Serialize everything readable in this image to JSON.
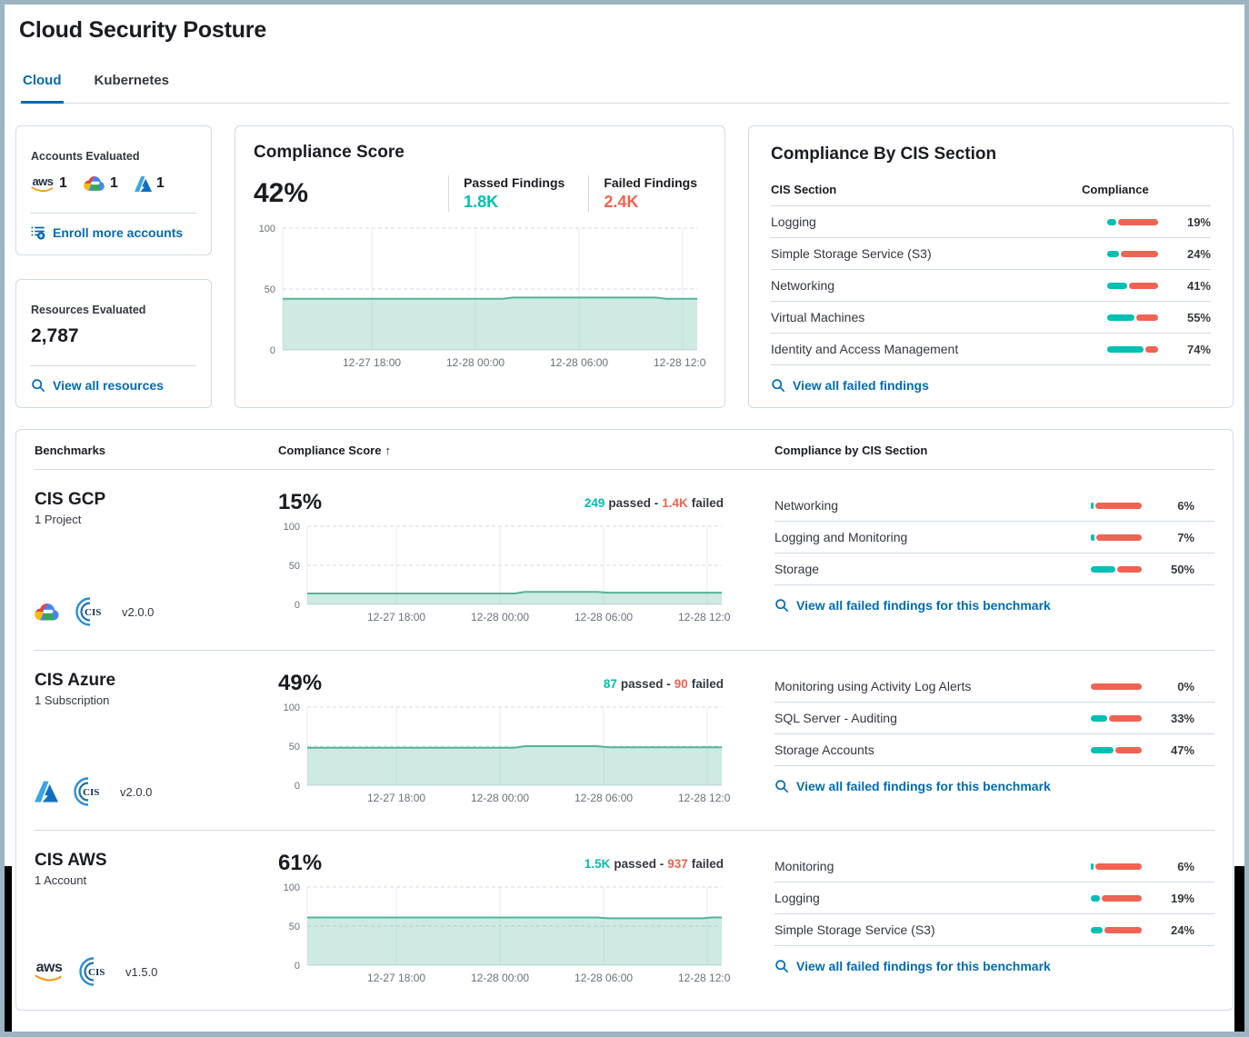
{
  "colors": {
    "teal": "#00BFB3",
    "coral": "#EE6352",
    "link_blue": "#006BB4",
    "chart_line": "#54B399",
    "chart_fill": "rgba(84,179,153,0.28)"
  },
  "header": {
    "title": "Cloud Security Posture",
    "tabs": [
      {
        "label": "Cloud",
        "active": true
      },
      {
        "label": "Kubernetes",
        "active": false
      }
    ]
  },
  "accounts_card": {
    "title": "Accounts Evaluated",
    "providers": [
      {
        "name": "AWS",
        "icon": "aws-icon",
        "count": "1"
      },
      {
        "name": "GCP",
        "icon": "gcp-icon",
        "count": "1"
      },
      {
        "name": "Azure",
        "icon": "azure-icon",
        "count": "1"
      }
    ],
    "enroll_label": "Enroll more accounts"
  },
  "resources_card": {
    "title": "Resources Evaluated",
    "count": "2,787",
    "link_label": "View all resources"
  },
  "compliance_score_card": {
    "title": "Compliance Score",
    "score": "42%",
    "passed_label": "Passed Findings",
    "passed_value": "1.8K",
    "failed_label": "Failed Findings",
    "failed_value": "2.4K"
  },
  "cis_section_card": {
    "title": "Compliance By CIS Section",
    "columns": {
      "section": "CIS Section",
      "compliance": "Compliance"
    },
    "rows": [
      {
        "name": "Logging",
        "pct": 19,
        "value": "19%"
      },
      {
        "name": "Simple Storage Service (S3)",
        "pct": 24,
        "value": "24%"
      },
      {
        "name": "Networking",
        "pct": 41,
        "value": "41%"
      },
      {
        "name": "Virtual Machines",
        "pct": 55,
        "value": "55%"
      },
      {
        "name": "Identity and Access Management",
        "pct": 74,
        "value": "74%"
      }
    ],
    "link_label": "View all failed findings"
  },
  "benchmarks": {
    "columns": {
      "benchmarks": "Benchmarks",
      "score": "Compliance Score",
      "sort_icon": "↑",
      "sections": "Compliance by CIS Section"
    },
    "rows": [
      {
        "name": "CIS GCP",
        "subtitle": "1 Project",
        "version": "v2.0.0",
        "score": "15%",
        "passed_value": "249",
        "passed_label": "passed -",
        "failed_value": "1.4K",
        "failed_label": "failed",
        "sections": [
          {
            "name": "Networking",
            "pct": 6,
            "value": "6%"
          },
          {
            "name": "Logging and Monitoring",
            "pct": 7,
            "value": "7%"
          },
          {
            "name": "Storage",
            "pct": 50,
            "value": "50%"
          }
        ],
        "link_label": "View all failed findings for this benchmark"
      },
      {
        "name": "CIS Azure",
        "subtitle": "1 Subscription",
        "version": "v2.0.0",
        "score": "49%",
        "passed_value": "87",
        "passed_label": "passed -",
        "failed_value": "90",
        "failed_label": "failed",
        "sections": [
          {
            "name": "Monitoring using Activity Log Alerts",
            "pct": 0,
            "value": "0%"
          },
          {
            "name": "SQL Server - Auditing",
            "pct": 33,
            "value": "33%"
          },
          {
            "name": "Storage Accounts",
            "pct": 47,
            "value": "47%"
          }
        ],
        "link_label": "View all failed findings for this benchmark"
      },
      {
        "name": "CIS AWS",
        "subtitle": "1 Account",
        "version": "v1.5.0",
        "score": "61%",
        "passed_value": "1.5K",
        "passed_label": "passed -",
        "failed_value": "937",
        "failed_label": "failed",
        "sections": [
          {
            "name": "Monitoring",
            "pct": 6,
            "value": "6%"
          },
          {
            "name": "Logging",
            "pct": 19,
            "value": "19%"
          },
          {
            "name": "Simple Storage Service (S3)",
            "pct": 24,
            "value": "24%"
          }
        ],
        "link_label": "View all failed findings for this benchmark"
      }
    ]
  },
  "chart_data": [
    {
      "id": "compliance-score-trend",
      "type": "area",
      "title": "Compliance Score",
      "ylim": [
        0,
        100
      ],
      "yticks": [
        0,
        50,
        100
      ],
      "xticks": [
        {
          "pos": 0.215,
          "label": "12-27 18:00"
        },
        {
          "pos": 0.465,
          "label": "12-28 00:00"
        },
        {
          "pos": 0.715,
          "label": "12-28 06:00"
        },
        {
          "pos": 0.965,
          "label": "12-28 12:00"
        }
      ],
      "series": [
        {
          "name": "Compliance Score",
          "points": [
            [
              0,
              42
            ],
            [
              0.53,
              42
            ],
            [
              0.555,
              43
            ],
            [
              0.9,
              43
            ],
            [
              0.925,
              42
            ],
            [
              1,
              42
            ]
          ]
        }
      ]
    },
    {
      "id": "cis-gcp-trend",
      "type": "area",
      "title": "CIS GCP Compliance Score",
      "ylim": [
        0,
        100
      ],
      "yticks": [
        0,
        50,
        100
      ],
      "xticks": [
        {
          "pos": 0.215,
          "label": "12-27 18:00"
        },
        {
          "pos": 0.465,
          "label": "12-28 00:00"
        },
        {
          "pos": 0.715,
          "label": "12-28 06:00"
        },
        {
          "pos": 0.965,
          "label": "12-28 12:00"
        }
      ],
      "series": [
        {
          "name": "CIS GCP",
          "points": [
            [
              0,
              14
            ],
            [
              0.5,
              14
            ],
            [
              0.525,
              16
            ],
            [
              0.7,
              16
            ],
            [
              0.725,
              15
            ],
            [
              1,
              15
            ]
          ]
        }
      ]
    },
    {
      "id": "cis-azure-trend",
      "type": "area",
      "title": "CIS Azure Compliance Score",
      "ylim": [
        0,
        100
      ],
      "yticks": [
        0,
        50,
        100
      ],
      "xticks": [
        {
          "pos": 0.215,
          "label": "12-27 18:00"
        },
        {
          "pos": 0.465,
          "label": "12-28 00:00"
        },
        {
          "pos": 0.715,
          "label": "12-28 06:00"
        },
        {
          "pos": 0.965,
          "label": "12-28 12:00"
        }
      ],
      "series": [
        {
          "name": "CIS Azure",
          "points": [
            [
              0,
              48
            ],
            [
              0.5,
              48
            ],
            [
              0.525,
              50
            ],
            [
              0.7,
              50
            ],
            [
              0.725,
              48.5
            ],
            [
              1,
              48.5
            ]
          ]
        }
      ]
    },
    {
      "id": "cis-aws-trend",
      "type": "area",
      "title": "CIS AWS Compliance Score",
      "ylim": [
        0,
        100
      ],
      "yticks": [
        0,
        50,
        100
      ],
      "xticks": [
        {
          "pos": 0.215,
          "label": "12-27 18:00"
        },
        {
          "pos": 0.465,
          "label": "12-28 00:00"
        },
        {
          "pos": 0.715,
          "label": "12-28 06:00"
        },
        {
          "pos": 0.965,
          "label": "12-28 12:00"
        }
      ],
      "series": [
        {
          "name": "CIS AWS",
          "points": [
            [
              0,
              61
            ],
            [
              0.7,
              61
            ],
            [
              0.725,
              60
            ],
            [
              0.955,
              60
            ],
            [
              0.975,
              61
            ],
            [
              1,
              61
            ]
          ]
        }
      ]
    }
  ]
}
